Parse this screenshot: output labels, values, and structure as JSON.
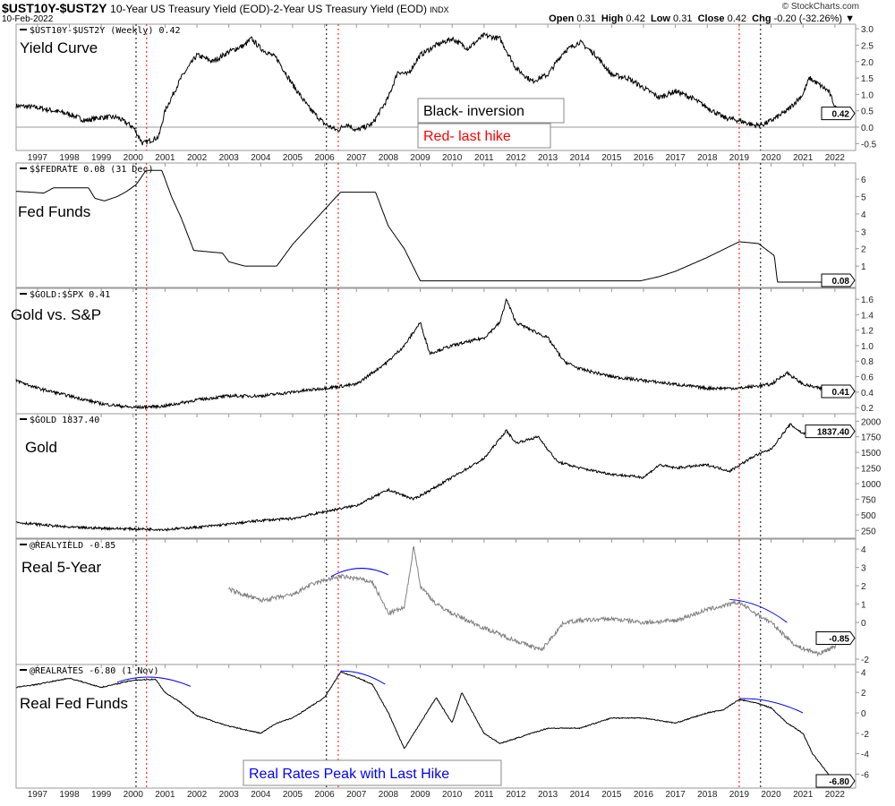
{
  "header": {
    "symbol": "$UST10Y-$UST2Y",
    "description": "10-Year US Treasury Yield (EOD)-2-Year US Treasury Yield (EOD)",
    "exchange": "INDX",
    "date": "10-Feb-2022",
    "brand": "© StockCharts.com",
    "open_label": "Open",
    "open": "0.31",
    "high_label": "High",
    "high": "0.42",
    "low_label": "Low",
    "low": "0.31",
    "close_label": "Close",
    "close": "0.42",
    "chg_label": "Chg",
    "chg": "-0.20 (-32.26%)",
    "menu_arrow": "▼"
  },
  "annotations": {
    "black_inversion": "Black- inversion",
    "red_last_hike": "Red- last hike",
    "real_rates_peak": "Real Rates Peak with Last Hike"
  },
  "colors": {
    "line": "#000000",
    "real5": "#808080",
    "red_marker": "#ff0000",
    "arc": "#0000ff",
    "panel_border": "#999999"
  },
  "chart_data": {
    "type": "line",
    "x_years": [
      "1997",
      "1998",
      "1999",
      "2000",
      "2001",
      "2002",
      "2003",
      "2004",
      "2005",
      "2006",
      "2007",
      "2008",
      "2009",
      "2010",
      "2011",
      "2012",
      "2013",
      "2014",
      "2015",
      "2016",
      "2017",
      "2018",
      "2019",
      "2020",
      "2021",
      "2022"
    ],
    "xlim": [
      1996.33,
      2022.65
    ],
    "markers": {
      "black_inversion": [
        2000.09,
        2006.06,
        2019.67
      ],
      "red_last_hike": [
        2000.42,
        2006.43,
        2019.0
      ]
    },
    "panels": [
      {
        "id": "yield-curve",
        "legend": "$UST10Y-$UST2Y (Weekly) 0.42",
        "label": "Yield Curve",
        "last": "0.42",
        "ylim": [
          -0.71,
          3.14
        ],
        "ticks": [
          "3.0",
          "2.5",
          "2.0",
          "1.5",
          "1.0",
          "0.5",
          "0.0",
          "-0.5"
        ],
        "tick_values": [
          3,
          2.5,
          2,
          1.5,
          1,
          0.5,
          0,
          -0.5
        ],
        "zero_line": true,
        "noise": 0.08,
        "points": [
          [
            1996.33,
            0.65
          ],
          [
            1997,
            0.6
          ],
          [
            1997.5,
            0.5
          ],
          [
            1998,
            0.4
          ],
          [
            1998.5,
            0.2
          ],
          [
            1999,
            0.3
          ],
          [
            1999.5,
            0.3
          ],
          [
            2000,
            0.0
          ],
          [
            2000.3,
            -0.5
          ],
          [
            2000.8,
            -0.3
          ],
          [
            2001,
            0.5
          ],
          [
            2001.5,
            1.5
          ],
          [
            2002,
            2.2
          ],
          [
            2002.5,
            2.0
          ],
          [
            2003,
            2.3
          ],
          [
            2003.5,
            2.5
          ],
          [
            2003.7,
            2.7
          ],
          [
            2004,
            2.4
          ],
          [
            2004.5,
            2.1
          ],
          [
            2005,
            1.3
          ],
          [
            2005.5,
            0.6
          ],
          [
            2006,
            0.1
          ],
          [
            2006.4,
            -0.1
          ],
          [
            2006.7,
            0.1
          ],
          [
            2007,
            -0.1
          ],
          [
            2007.5,
            0.1
          ],
          [
            2008,
            0.9
          ],
          [
            2008.3,
            1.7
          ],
          [
            2008.6,
            1.6
          ],
          [
            2009,
            2.2
          ],
          [
            2009.5,
            2.5
          ],
          [
            2010,
            2.7
          ],
          [
            2010.5,
            2.4
          ],
          [
            2011,
            2.8
          ],
          [
            2011.5,
            2.7
          ],
          [
            2012,
            1.8
          ],
          [
            2012.5,
            1.4
          ],
          [
            2013,
            1.6
          ],
          [
            2013.5,
            2.3
          ],
          [
            2014,
            2.6
          ],
          [
            2014.5,
            2.2
          ],
          [
            2015,
            1.6
          ],
          [
            2015.5,
            1.5
          ],
          [
            2016,
            1.2
          ],
          [
            2016.5,
            0.9
          ],
          [
            2017,
            1.1
          ],
          [
            2017.5,
            0.9
          ],
          [
            2018,
            0.6
          ],
          [
            2018.5,
            0.3
          ],
          [
            2019,
            0.2
          ],
          [
            2019.5,
            0.05
          ],
          [
            2019.8,
            0.1
          ],
          [
            2020,
            0.2
          ],
          [
            2020.5,
            0.5
          ],
          [
            2021,
            1.0
          ],
          [
            2021.2,
            1.5
          ],
          [
            2021.5,
            1.3
          ],
          [
            2021.8,
            1.1
          ],
          [
            2022.1,
            0.42
          ]
        ]
      },
      {
        "id": "fed-funds",
        "legend": "$$FEDRATE 0.08 (31 Dec)",
        "label": "Fed Funds",
        "last": "0.08",
        "ylim": [
          -0.23,
          6.93
        ],
        "ticks": [
          "6",
          "5",
          "4",
          "3",
          "2",
          "1"
        ],
        "tick_values": [
          6,
          5,
          4,
          3,
          2,
          1
        ],
        "noise": 0,
        "points": [
          [
            1996.33,
            5.3
          ],
          [
            1996.8,
            5.25
          ],
          [
            1997.2,
            5.2
          ],
          [
            1997.5,
            5.5
          ],
          [
            1998.6,
            5.5
          ],
          [
            1998.8,
            4.9
          ],
          [
            1999.1,
            4.75
          ],
          [
            1999.5,
            5.0
          ],
          [
            1999.8,
            5.3
          ],
          [
            2000.1,
            5.7
          ],
          [
            2000.4,
            6.5
          ],
          [
            2000.9,
            6.5
          ],
          [
            2001.2,
            5.0
          ],
          [
            2001.5,
            3.8
          ],
          [
            2001.9,
            1.9
          ],
          [
            2002.8,
            1.75
          ],
          [
            2003.0,
            1.25
          ],
          [
            2003.5,
            1.0
          ],
          [
            2004.5,
            1.0
          ],
          [
            2005,
            2.25
          ],
          [
            2006,
            4.25
          ],
          [
            2006.5,
            5.25
          ],
          [
            2007.6,
            5.25
          ],
          [
            2008,
            3.3
          ],
          [
            2008.5,
            2.0
          ],
          [
            2009,
            0.15
          ],
          [
            2015.9,
            0.15
          ],
          [
            2016.5,
            0.4
          ],
          [
            2017,
            0.7
          ],
          [
            2018,
            1.5
          ],
          [
            2019,
            2.4
          ],
          [
            2019.6,
            2.3
          ],
          [
            2020.1,
            1.6
          ],
          [
            2020.2,
            0.08
          ],
          [
            2022.1,
            0.08
          ]
        ]
      },
      {
        "id": "gold-vs-sp",
        "legend": "$GOLD:$SPX 0.41",
        "label": "Gold vs. S&P",
        "last": "0.41",
        "ylim": [
          0.12,
          1.74
        ],
        "ticks": [
          "1.6",
          "1.4",
          "1.2",
          "1.0",
          "0.8",
          "0.6",
          "0.4",
          "0.2"
        ],
        "tick_values": [
          1.6,
          1.4,
          1.2,
          1.0,
          0.8,
          0.6,
          0.4,
          0.2
        ],
        "noise": 0.02,
        "points": [
          [
            1996.33,
            0.55
          ],
          [
            1997,
            0.45
          ],
          [
            1998,
            0.35
          ],
          [
            1999,
            0.25
          ],
          [
            2000,
            0.2
          ],
          [
            2001,
            0.22
          ],
          [
            2002,
            0.3
          ],
          [
            2003,
            0.35
          ],
          [
            2004,
            0.35
          ],
          [
            2005,
            0.4
          ],
          [
            2006,
            0.45
          ],
          [
            2007,
            0.5
          ],
          [
            2008,
            0.8
          ],
          [
            2008.5,
            1.0
          ],
          [
            2009,
            1.3
          ],
          [
            2009.3,
            0.9
          ],
          [
            2010,
            1.0
          ],
          [
            2011,
            1.1
          ],
          [
            2011.5,
            1.3
          ],
          [
            2011.7,
            1.6
          ],
          [
            2012,
            1.3
          ],
          [
            2012.5,
            1.2
          ],
          [
            2013,
            1.1
          ],
          [
            2013.5,
            0.8
          ],
          [
            2014,
            0.7
          ],
          [
            2015,
            0.6
          ],
          [
            2016,
            0.55
          ],
          [
            2017,
            0.5
          ],
          [
            2018,
            0.45
          ],
          [
            2019,
            0.45
          ],
          [
            2020,
            0.5
          ],
          [
            2020.5,
            0.65
          ],
          [
            2021,
            0.5
          ],
          [
            2021.5,
            0.45
          ],
          [
            2022.1,
            0.41
          ]
        ]
      },
      {
        "id": "gold",
        "legend": "$GOLD 1837.40",
        "label": "Gold",
        "last": "1837.40",
        "ylim": [
          125,
          2119
        ],
        "ticks": [
          "2000",
          "1750",
          "1500",
          "1250",
          "1000",
          "750",
          "500",
          "250"
        ],
        "tick_values": [
          2000,
          1750,
          1500,
          1250,
          1000,
          750,
          500,
          250
        ],
        "noise": 20,
        "points": [
          [
            1996.33,
            380
          ],
          [
            1998,
            300
          ],
          [
            1999,
            285
          ],
          [
            2001,
            265
          ],
          [
            2002,
            300
          ],
          [
            2003,
            350
          ],
          [
            2004,
            410
          ],
          [
            2005,
            440
          ],
          [
            2006,
            550
          ],
          [
            2007,
            650
          ],
          [
            2008,
            900
          ],
          [
            2008.8,
            750
          ],
          [
            2009.5,
            950
          ],
          [
            2010,
            1100
          ],
          [
            2011,
            1400
          ],
          [
            2011.7,
            1850
          ],
          [
            2012,
            1650
          ],
          [
            2012.7,
            1750
          ],
          [
            2013.3,
            1350
          ],
          [
            2014,
            1250
          ],
          [
            2015,
            1150
          ],
          [
            2016,
            1100
          ],
          [
            2016.5,
            1300
          ],
          [
            2017,
            1250
          ],
          [
            2018,
            1300
          ],
          [
            2018.7,
            1200
          ],
          [
            2019.5,
            1450
          ],
          [
            2020,
            1550
          ],
          [
            2020.6,
            1950
          ],
          [
            2021,
            1800
          ],
          [
            2022.1,
            1837.4
          ]
        ]
      },
      {
        "id": "real-5-year",
        "legend": "@REALYIELD -0.85",
        "label": "Real 5-Year",
        "last": "-0.85",
        "ylim": [
          -2.29,
          4.54
        ],
        "gray": true,
        "ticks": [
          "4",
          "3",
          "2",
          "1",
          "0",
          "-2"
        ],
        "tick_values": [
          4,
          3,
          2,
          1,
          0,
          -2
        ],
        "noise": 0.12,
        "arcs": [
          [
            [
              2006.2,
              2.5
            ],
            [
              2007.1,
              2.95
            ],
            [
              2008,
              2.6
            ]
          ],
          [
            [
              2018.7,
              1.25
            ],
            [
              2019.6,
              0.9
            ],
            [
              2020.5,
              0.0
            ]
          ]
        ],
        "points": [
          [
            2003,
            1.8
          ],
          [
            2004,
            1.2
          ],
          [
            2005,
            1.5
          ],
          [
            2005.5,
            2.0
          ],
          [
            2006,
            2.3
          ],
          [
            2006.5,
            2.5
          ],
          [
            2007,
            2.4
          ],
          [
            2007.5,
            2.2
          ],
          [
            2008,
            0.5
          ],
          [
            2008.5,
            0.8
          ],
          [
            2008.8,
            4.2
          ],
          [
            2009,
            2.0
          ],
          [
            2009.5,
            1.0
          ],
          [
            2010,
            0.5
          ],
          [
            2011,
            -0.3
          ],
          [
            2012,
            -1.0
          ],
          [
            2012.8,
            -1.5
          ],
          [
            2013.5,
            0.0
          ],
          [
            2014,
            0.1
          ],
          [
            2015,
            0.2
          ],
          [
            2016,
            0.0
          ],
          [
            2017,
            0.1
          ],
          [
            2018,
            0.7
          ],
          [
            2019,
            1.1
          ],
          [
            2019.5,
            0.5
          ],
          [
            2020,
            0.0
          ],
          [
            2020.3,
            -0.5
          ],
          [
            2020.8,
            -1.3
          ],
          [
            2021.5,
            -1.7
          ],
          [
            2022,
            -1.3
          ],
          [
            2022.1,
            -0.85
          ]
        ]
      },
      {
        "id": "real-fed-funds",
        "legend": "@REALRATES -6.80 (1 Nov)",
        "label": "Real Fed Funds",
        "last": "-6.80",
        "ylim": [
          -7.37,
          4.74
        ],
        "ticks": [
          "4",
          "2",
          "0",
          "-2",
          "-4",
          "-6"
        ],
        "tick_values": [
          4,
          2,
          0,
          -2,
          -4,
          -6
        ],
        "noise": 0.05,
        "arcs": [
          [
            [
              1999.5,
              3.0
            ],
            [
              2000.6,
              3.5
            ],
            [
              2001.8,
              2.6
            ]
          ],
          [
            [
              2006.5,
              4.1
            ],
            [
              2007.2,
              3.8
            ],
            [
              2007.9,
              2.8
            ]
          ],
          [
            [
              2019,
              1.4
            ],
            [
              2020,
              1.1
            ],
            [
              2021,
              0.0
            ]
          ]
        ],
        "points": [
          [
            1996.33,
            2.5
          ],
          [
            1997,
            2.8
          ],
          [
            1998,
            3.4
          ],
          [
            1999,
            2.5
          ],
          [
            2000,
            3.2
          ],
          [
            2000.7,
            3.3
          ],
          [
            2001,
            2.0
          ],
          [
            2001.5,
            1
          ],
          [
            2002,
            -0.3
          ],
          [
            2003,
            -1.3
          ],
          [
            2004,
            -2.0
          ],
          [
            2004.5,
            -1.0
          ],
          [
            2005,
            -0.5
          ],
          [
            2005.5,
            0.5
          ],
          [
            2006,
            1.5
          ],
          [
            2006.5,
            4.0
          ],
          [
            2007,
            3.5
          ],
          [
            2007.5,
            2.8
          ],
          [
            2008,
            0
          ],
          [
            2008.5,
            -3.5
          ],
          [
            2009,
            -1
          ],
          [
            2009.5,
            1.5
          ],
          [
            2010,
            -1
          ],
          [
            2010.3,
            2.0
          ],
          [
            2011,
            -2.0
          ],
          [
            2011.5,
            -3.0
          ],
          [
            2012,
            -2.5
          ],
          [
            2013,
            -1.5
          ],
          [
            2014,
            -1.5
          ],
          [
            2015,
            -0.5
          ],
          [
            2016,
            -0.5
          ],
          [
            2017,
            -1.0
          ],
          [
            2018,
            0
          ],
          [
            2018.5,
            0.3
          ],
          [
            2019,
            1.3
          ],
          [
            2019.5,
            1.0
          ],
          [
            2020,
            0.5
          ],
          [
            2020.5,
            -1.0
          ],
          [
            2021,
            -2
          ],
          [
            2021.3,
            -4
          ],
          [
            2021.6,
            -5.2
          ],
          [
            2022,
            -6.8
          ]
        ]
      }
    ]
  }
}
